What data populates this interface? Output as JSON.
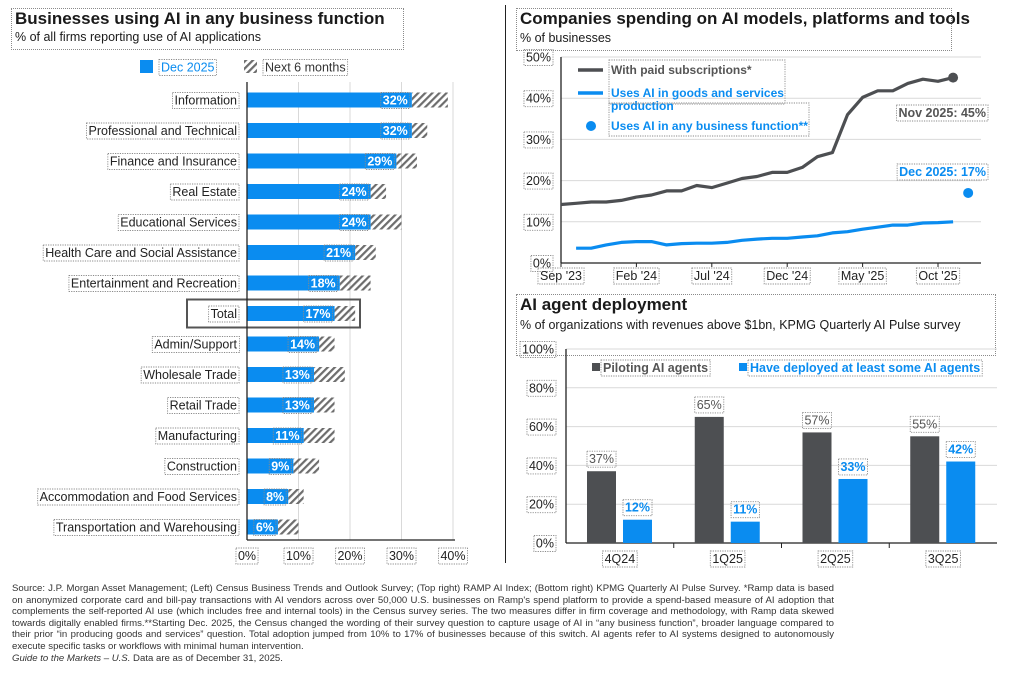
{
  "left": {
    "title": "Businesses using AI in any business function",
    "subtitle": "% of all firms reporting use of AI applications"
  },
  "top_right": {
    "title": "Companies spending on AI models, platforms and tools",
    "subtitle": "% of businesses"
  },
  "bottom_right": {
    "title": "AI agent deployment",
    "subtitle": "% of organizations with revenues above $1bn, KPMG Quarterly AI Pulse survey"
  },
  "colors": {
    "blue": "#0a8cf0",
    "dark_gray": "#4d4f52",
    "hatch_gray": "#6d6d6d",
    "grid": "#d9d9d9",
    "axis": "#222222"
  },
  "chart_data": [
    {
      "type": "bar",
      "orientation": "horizontal",
      "title": "Businesses using AI in any business function",
      "subtitle": "% of all firms reporting use of AI applications",
      "categories": [
        "Information",
        "Professional and Technical",
        "Finance and Insurance",
        "Real Estate",
        "Educational Services",
        "Health Care and Social Assistance",
        "Entertainment and Recreation",
        "Total",
        "Admin/Support",
        "Wholesale Trade",
        "Retail Trade",
        "Manufacturing",
        "Construction",
        "Accommodation and Food Services",
        "Transportation and Warehousing"
      ],
      "highlighted_category": "Total",
      "series": [
        {
          "name": "Dec 2025",
          "values": [
            32,
            32,
            29,
            24,
            24,
            21,
            18,
            17,
            14,
            13,
            13,
            11,
            9,
            8,
            6
          ],
          "labels": [
            "32%",
            "32%",
            "29%",
            "24%",
            "24%",
            "21%",
            "18%",
            "17%",
            "14%",
            "13%",
            "13%",
            "11%",
            "9%",
            "8%",
            "6%"
          ]
        },
        {
          "name": "Next 6 months",
          "values": [
            39,
            35,
            33,
            27,
            30,
            25,
            24,
            21,
            17,
            19,
            17,
            17,
            14,
            11,
            10
          ]
        }
      ],
      "xlim": [
        0,
        40
      ],
      "xticks": [
        "0%",
        "10%",
        "20%",
        "30%",
        "40%"
      ],
      "grid": true,
      "legend": "top"
    },
    {
      "type": "line",
      "title": "Companies spending on AI models, platforms and tools",
      "ylabel": "% of businesses",
      "ylim": [
        0,
        50
      ],
      "yticks": [
        "0%",
        "10%",
        "20%",
        "30%",
        "40%",
        "50%"
      ],
      "xticks": [
        "Sep '23",
        "Feb '24",
        "Jul '24",
        "Dec '24",
        "May '25",
        "Oct '25"
      ],
      "x_start": "Sep 2023",
      "x_unit": "month",
      "grid": true,
      "legend": "top-left",
      "series": [
        {
          "name": "With paid subscriptions*",
          "color": "#4d4f52",
          "start_month": 0,
          "values": [
            14.2,
            14.5,
            14.8,
            14.8,
            15.2,
            16,
            16.5,
            17.5,
            17.5,
            18.8,
            18.3,
            19.4,
            20.5,
            21,
            22,
            22,
            23.2,
            25.8,
            26.8,
            36,
            40.2,
            41.8,
            41.8,
            43.6,
            44.6,
            44.1,
            45
          ]
        },
        {
          "name": "Uses AI in goods and services production",
          "color": "#0a8cf0",
          "start_month": 1,
          "values": [
            3.6,
            3.6,
            4.4,
            5,
            5.2,
            5.2,
            4.4,
            4.7,
            4.8,
            4.8,
            5,
            5.5,
            5.8,
            6,
            6,
            6.3,
            6.6,
            7.3,
            7.6,
            8.2,
            8.7,
            9.2,
            9.2,
            9.7,
            9.8,
            10
          ]
        },
        {
          "name": "Uses AI in any business function**",
          "color": "#0a8cf0",
          "type": "point",
          "month": 27,
          "value": 17
        }
      ],
      "annotations": [
        {
          "text": "Nov 2025: 45%",
          "series": "With paid subscriptions*"
        },
        {
          "text": "Dec 2025: 17%",
          "series": "Uses AI in any business function**"
        }
      ]
    },
    {
      "type": "bar",
      "title": "AI agent deployment",
      "subtitle": "% of organizations with revenues above $1bn, KPMG Quarterly AI Pulse survey",
      "categories": [
        "4Q24",
        "1Q25",
        "2Q25",
        "3Q25"
      ],
      "series": [
        {
          "name": "Piloting AI agents",
          "color": "#4d4f52",
          "values": [
            37,
            65,
            57,
            55
          ],
          "labels": [
            "37%",
            "65%",
            "57%",
            "55%"
          ]
        },
        {
          "name": "Have deployed at least some AI agents",
          "color": "#0a8cf0",
          "values": [
            12,
            11,
            33,
            42
          ],
          "labels": [
            "12%",
            "11%",
            "33%",
            "42%"
          ]
        }
      ],
      "ylim": [
        0,
        100
      ],
      "yticks": [
        "0%",
        "20%",
        "40%",
        "60%",
        "80%",
        "100%"
      ],
      "grid": true,
      "legend": "top"
    }
  ],
  "footnote": {
    "text": "Source: J.P. Morgan Asset Management; (Left) Census Business Trends and Outlook Survey; (Top right) RAMP AI Index; (Bottom right) KPMG Quarterly AI Pulse Survey. *Ramp data is based on anonymized corporate card and bill-pay transactions with AI vendors across over 50,000 U.S. businesses on Ramp's spend platform to provide a spend-based measure of AI adoption that complements the self-reported AI use (which includes free and internal tools) in the Census survey series. The two measures differ in firm coverage and methodology, with Ramp data skewed towards digitally enabled firms.**Starting Dec. 2025, the Census changed the wording of their survey question to capture usage of AI in “any business function”, broader language compared to their prior “in producing goods and services” question. Total adoption jumped from 10% to 17% of businesses because of this switch. AI agents refer to AI systems designed to autonomously execute specific tasks or workflows with minimal human intervention.",
    "guide_italic": "Guide to the Markets – U.S.",
    "as_of": " Data are as of December 31, 2025."
  }
}
